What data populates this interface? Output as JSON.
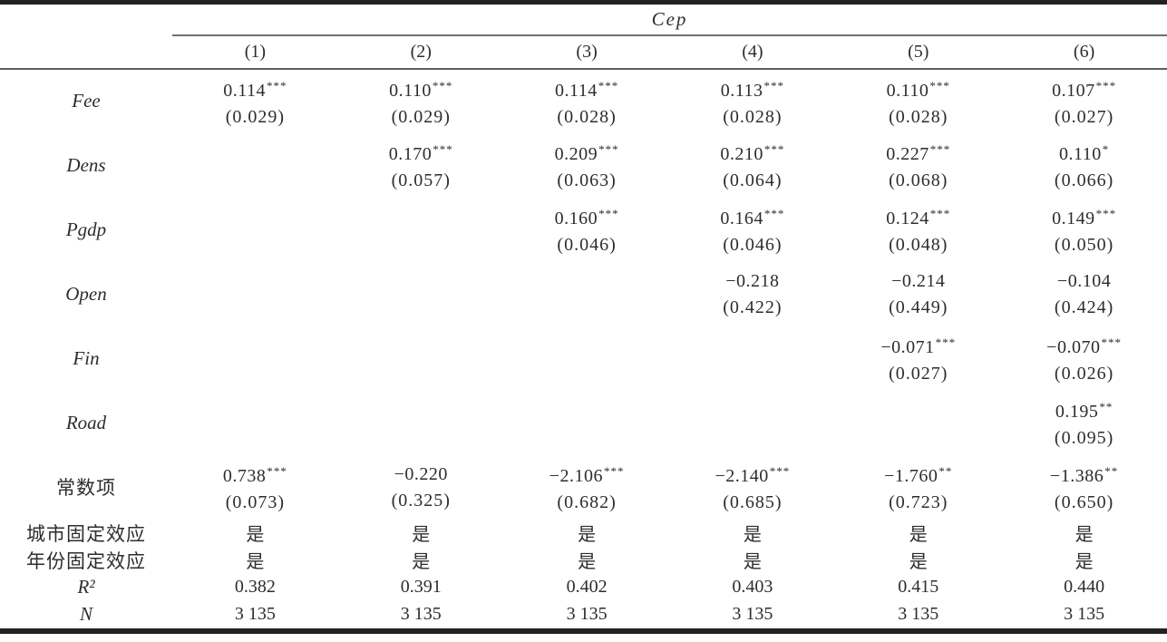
{
  "table": {
    "dep_var_header": "Cep",
    "col_headers": [
      "(1)",
      "(2)",
      "(3)",
      "(4)",
      "(5)",
      "(6)"
    ],
    "coef_rows": [
      {
        "label": "Fee",
        "cells": [
          {
            "coef": "0.114",
            "stars": "***",
            "se": "(0.029)"
          },
          {
            "coef": "0.110",
            "stars": "***",
            "se": "(0.029)"
          },
          {
            "coef": "0.114",
            "stars": "***",
            "se": "(0.028)"
          },
          {
            "coef": "0.113",
            "stars": "***",
            "se": "(0.028)"
          },
          {
            "coef": "0.110",
            "stars": "***",
            "se": "(0.028)"
          },
          {
            "coef": "0.107",
            "stars": "***",
            "se": "(0.027)"
          }
        ]
      },
      {
        "label": "Dens",
        "cells": [
          null,
          {
            "coef": "0.170",
            "stars": "***",
            "se": "(0.057)"
          },
          {
            "coef": "0.209",
            "stars": "***",
            "se": "(0.063)"
          },
          {
            "coef": "0.210",
            "stars": "***",
            "se": "(0.064)"
          },
          {
            "coef": "0.227",
            "stars": "***",
            "se": "(0.068)"
          },
          {
            "coef": "0.110",
            "stars": "*",
            "se": "(0.066)"
          }
        ]
      },
      {
        "label": "Pgdp",
        "cells": [
          null,
          null,
          {
            "coef": "0.160",
            "stars": "***",
            "se": "(0.046)"
          },
          {
            "coef": "0.164",
            "stars": "***",
            "se": "(0.046)"
          },
          {
            "coef": "0.124",
            "stars": "***",
            "se": "(0.048)"
          },
          {
            "coef": "0.149",
            "stars": "***",
            "se": "(0.050)"
          }
        ]
      },
      {
        "label": "Open",
        "cells": [
          null,
          null,
          null,
          {
            "coef": "−0.218",
            "stars": "",
            "se": "(0.422)"
          },
          {
            "coef": "−0.214",
            "stars": "",
            "se": "(0.449)"
          },
          {
            "coef": "−0.104",
            "stars": "",
            "se": "(0.424)"
          }
        ]
      },
      {
        "label": "Fin",
        "cells": [
          null,
          null,
          null,
          null,
          {
            "coef": "−0.071",
            "stars": "***",
            "se": "(0.027)"
          },
          {
            "coef": "−0.070",
            "stars": "***",
            "se": "(0.026)"
          }
        ]
      },
      {
        "label": "Road",
        "cells": [
          null,
          null,
          null,
          null,
          null,
          {
            "coef": "0.195",
            "stars": "**",
            "se": "(0.095)"
          }
        ]
      },
      {
        "label": "常数项",
        "cells": [
          {
            "coef": "0.738",
            "stars": "***",
            "se": "(0.073)"
          },
          {
            "coef": "−0.220",
            "stars": "",
            "se": "(0.325)"
          },
          {
            "coef": "−2.106",
            "stars": "***",
            "se": "(0.682)"
          },
          {
            "coef": "−2.140",
            "stars": "***",
            "se": "(0.685)"
          },
          {
            "coef": "−1.760",
            "stars": "**",
            "se": "(0.723)"
          },
          {
            "coef": "−1.386",
            "stars": "**",
            "se": "(0.650)"
          }
        ]
      }
    ],
    "stat_rows": [
      {
        "label": "城市固定效应",
        "values": [
          "是",
          "是",
          "是",
          "是",
          "是",
          "是"
        ]
      },
      {
        "label": "年份固定效应",
        "values": [
          "是",
          "是",
          "是",
          "是",
          "是",
          "是"
        ]
      },
      {
        "label": "R²",
        "values": [
          "0.382",
          "0.391",
          "0.402",
          "0.403",
          "0.415",
          "0.440"
        ]
      },
      {
        "label": "N",
        "values": [
          "3 135",
          "3 135",
          "3 135",
          "3 135",
          "3 135",
          "3 135"
        ]
      }
    ]
  }
}
